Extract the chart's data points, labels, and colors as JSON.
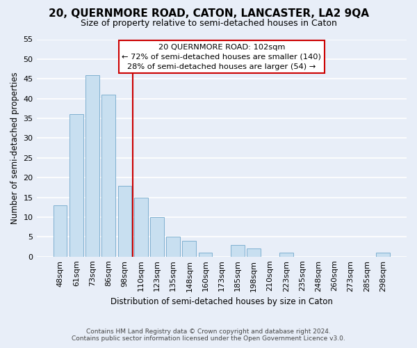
{
  "title": "20, QUERNMORE ROAD, CATON, LANCASTER, LA2 9QA",
  "subtitle": "Size of property relative to semi-detached houses in Caton",
  "xlabel": "Distribution of semi-detached houses by size in Caton",
  "ylabel": "Number of semi-detached properties",
  "categories": [
    "48sqm",
    "61sqm",
    "73sqm",
    "86sqm",
    "98sqm",
    "110sqm",
    "123sqm",
    "135sqm",
    "148sqm",
    "160sqm",
    "173sqm",
    "185sqm",
    "198sqm",
    "210sqm",
    "223sqm",
    "235sqm",
    "248sqm",
    "260sqm",
    "273sqm",
    "285sqm",
    "298sqm"
  ],
  "values": [
    13,
    36,
    46,
    41,
    18,
    15,
    10,
    5,
    4,
    1,
    0,
    3,
    2,
    0,
    1,
    0,
    0,
    0,
    0,
    0,
    1
  ],
  "bar_color": "#c8dff0",
  "bar_edge_color": "#7fb0d0",
  "vline_x": 4.5,
  "vline_color": "#cc0000",
  "annotation_title": "20 QUERNMORE ROAD: 102sqm",
  "annotation_line1": "← 72% of semi-detached houses are smaller (140)",
  "annotation_line2": "28% of semi-detached houses are larger (54) →",
  "annotation_box_facecolor": "#ffffff",
  "annotation_box_edgecolor": "#cc0000",
  "ylim": [
    0,
    55
  ],
  "yticks": [
    0,
    5,
    10,
    15,
    20,
    25,
    30,
    35,
    40,
    45,
    50,
    55
  ],
  "footer_line1": "Contains HM Land Registry data © Crown copyright and database right 2024.",
  "footer_line2": "Contains public sector information licensed under the Open Government Licence v3.0.",
  "bg_color": "#e8eef8",
  "plot_bg_color": "#e8eef8",
  "grid_color": "#ffffff",
  "title_fontsize": 11,
  "subtitle_fontsize": 9
}
